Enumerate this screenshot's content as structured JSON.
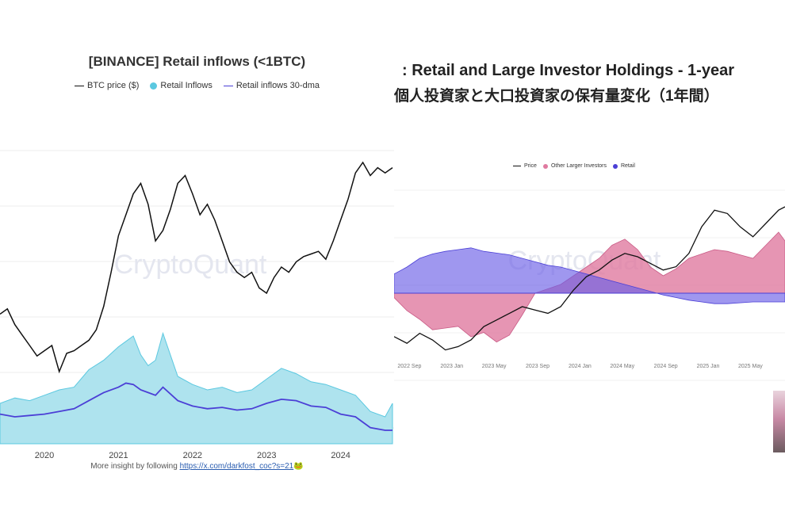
{
  "left": {
    "title": "[BINANCE] Retail inflows (<1BTC)",
    "legend": [
      {
        "label": "BTC price ($)",
        "kind": "line",
        "color": "#111111"
      },
      {
        "label": "Retail Inflows",
        "kind": "dot",
        "color": "#5bc8e0"
      },
      {
        "label": "Retail inflows 30-dma",
        "kind": "line",
        "color": "#4b3fd6"
      }
    ],
    "watermark": "CryptoQuant",
    "footer_text": "More insight by following ",
    "footer_link": "https://x.com/darkfost_coc?s=21",
    "footer_emoji": "🐸"
  },
  "right": {
    "title": ": Retail and Large Investor Holdings - 1-year",
    "subtitle": "個人投資家と大口投資家の保有量変化（1年間）",
    "legend": [
      {
        "label": "Price",
        "kind": "line",
        "color": "#111111"
      },
      {
        "label": "Other Larger Investors",
        "kind": "dot",
        "color": "#e07aa0"
      },
      {
        "label": "Retail",
        "kind": "dot",
        "color": "#4b3fd6"
      }
    ],
    "watermark": "CryptoQuant"
  },
  "chart_data": [
    {
      "type": "line",
      "title": "[BINANCE] Retail inflows (<1BTC)",
      "x_ticks": [
        "2020",
        "2021",
        "2022",
        "2023",
        "2024"
      ],
      "xlim": [
        2019.4,
        2024.7
      ],
      "series": [
        {
          "name": "BTC price ($)",
          "x": [
            2019.4,
            2019.5,
            2019.6,
            2019.7,
            2019.8,
            2019.9,
            2020.0,
            2020.1,
            2020.2,
            2020.3,
            2020.4,
            2020.5,
            2020.6,
            2020.7,
            2020.8,
            2020.9,
            2021.0,
            2021.1,
            2021.2,
            2021.3,
            2021.4,
            2021.5,
            2021.6,
            2021.7,
            2021.8,
            2021.9,
            2022.0,
            2022.1,
            2022.2,
            2022.3,
            2022.4,
            2022.5,
            2022.6,
            2022.7,
            2022.8,
            2022.9,
            2023.0,
            2023.1,
            2023.2,
            2023.3,
            2023.4,
            2023.5,
            2023.6,
            2023.7,
            2023.8,
            2023.9,
            2024.0,
            2024.1,
            2024.2,
            2024.3,
            2024.4,
            2024.5,
            2024.6,
            2024.7
          ],
          "values": [
            0.42,
            0.44,
            0.38,
            0.34,
            0.3,
            0.26,
            0.28,
            0.3,
            0.2,
            0.27,
            0.28,
            0.3,
            0.32,
            0.36,
            0.45,
            0.58,
            0.72,
            0.8,
            0.88,
            0.92,
            0.84,
            0.7,
            0.74,
            0.82,
            0.92,
            0.95,
            0.88,
            0.8,
            0.84,
            0.78,
            0.7,
            0.62,
            0.58,
            0.56,
            0.58,
            0.52,
            0.5,
            0.56,
            0.6,
            0.58,
            0.62,
            0.64,
            0.65,
            0.66,
            0.63,
            0.7,
            0.78,
            0.86,
            0.96,
            1.0,
            0.95,
            0.98,
            0.96,
            0.98
          ]
        },
        {
          "name": "Retail inflows 30-dma",
          "x": [
            2019.4,
            2019.6,
            2019.8,
            2020.0,
            2020.2,
            2020.4,
            2020.6,
            2020.8,
            2021.0,
            2021.1,
            2021.2,
            2021.3,
            2021.4,
            2021.5,
            2021.6,
            2021.8,
            2022.0,
            2022.2,
            2022.4,
            2022.6,
            2022.8,
            2023.0,
            2023.2,
            2023.4,
            2023.6,
            2023.8,
            2024.0,
            2024.2,
            2024.4,
            2024.6,
            2024.7
          ],
          "values": [
            0.22,
            0.2,
            0.21,
            0.22,
            0.24,
            0.26,
            0.32,
            0.38,
            0.42,
            0.45,
            0.44,
            0.4,
            0.38,
            0.36,
            0.42,
            0.32,
            0.28,
            0.26,
            0.27,
            0.25,
            0.26,
            0.3,
            0.33,
            0.32,
            0.28,
            0.27,
            0.22,
            0.2,
            0.12,
            0.1,
            0.1
          ]
        },
        {
          "name": "Retail Inflows",
          "x": [
            2019.4,
            2019.6,
            2019.8,
            2020.0,
            2020.2,
            2020.4,
            2020.6,
            2020.8,
            2021.0,
            2021.1,
            2021.2,
            2021.3,
            2021.4,
            2021.5,
            2021.6,
            2021.8,
            2022.0,
            2022.2,
            2022.4,
            2022.6,
            2022.8,
            2023.0,
            2023.2,
            2023.4,
            2023.6,
            2023.8,
            2024.0,
            2024.2,
            2024.4,
            2024.6,
            2024.7
          ],
          "values": [
            0.3,
            0.34,
            0.32,
            0.36,
            0.4,
            0.42,
            0.55,
            0.62,
            0.72,
            0.76,
            0.8,
            0.66,
            0.58,
            0.62,
            0.82,
            0.5,
            0.44,
            0.4,
            0.42,
            0.38,
            0.4,
            0.48,
            0.56,
            0.52,
            0.46,
            0.44,
            0.4,
            0.36,
            0.24,
            0.2,
            0.3
          ]
        }
      ]
    },
    {
      "type": "area",
      "title": ": Retail and Large Investor Holdings - 1-year",
      "x_ticks": [
        "2022 Sep",
        "2023 Jan",
        "2023 May",
        "2023 Sep",
        "2024 Jan",
        "2024 May",
        "2024 Sep",
        "2025 Jan",
        "2025 May"
      ],
      "xlim": [
        2022.55,
        2025.6
      ],
      "series": [
        {
          "name": "Price",
          "x": [
            2022.55,
            2022.65,
            2022.75,
            2022.85,
            2022.95,
            2023.05,
            2023.15,
            2023.25,
            2023.35,
            2023.45,
            2023.55,
            2023.65,
            2023.75,
            2023.85,
            2023.95,
            2024.05,
            2024.15,
            2024.25,
            2024.35,
            2024.45,
            2024.55,
            2024.65,
            2024.75,
            2024.85,
            2024.95,
            2025.05,
            2025.15,
            2025.25,
            2025.35,
            2025.45,
            2025.55,
            2025.6
          ],
          "values": [
            0.12,
            0.08,
            0.14,
            0.1,
            0.04,
            0.06,
            0.1,
            0.18,
            0.22,
            0.26,
            0.3,
            0.28,
            0.26,
            0.3,
            0.4,
            0.48,
            0.52,
            0.58,
            0.62,
            0.6,
            0.56,
            0.52,
            0.54,
            0.62,
            0.78,
            0.88,
            0.86,
            0.78,
            0.72,
            0.8,
            0.88,
            0.9
          ]
        },
        {
          "name": "Other Larger Investors",
          "x": [
            2022.55,
            2022.65,
            2022.75,
            2022.85,
            2022.95,
            2023.05,
            2023.15,
            2023.25,
            2023.35,
            2023.45,
            2023.55,
            2023.65,
            2023.75,
            2023.85,
            2023.95,
            2024.05,
            2024.15,
            2024.25,
            2024.35,
            2024.45,
            2024.55,
            2024.65,
            2024.75,
            2024.85,
            2024.95,
            2025.05,
            2025.15,
            2025.25,
            2025.35,
            2025.45,
            2025.55,
            2025.6
          ],
          "values": [
            -0.05,
            -0.2,
            -0.3,
            -0.42,
            -0.4,
            -0.38,
            -0.5,
            -0.45,
            -0.56,
            -0.48,
            -0.25,
            0.0,
            0.05,
            0.1,
            0.2,
            0.3,
            0.4,
            0.55,
            0.62,
            0.5,
            0.3,
            0.2,
            0.28,
            0.4,
            0.45,
            0.5,
            0.48,
            0.44,
            0.4,
            0.55,
            0.7,
            0.6
          ]
        },
        {
          "name": "Retail",
          "x": [
            2022.55,
            2022.65,
            2022.75,
            2022.85,
            2022.95,
            2023.05,
            2023.15,
            2023.25,
            2023.35,
            2023.45,
            2023.55,
            2023.65,
            2023.75,
            2023.85,
            2023.95,
            2024.05,
            2024.15,
            2024.25,
            2024.35,
            2024.45,
            2024.55,
            2024.65,
            2024.75,
            2024.85,
            2024.95,
            2025.05,
            2025.15,
            2025.25,
            2025.35,
            2025.45,
            2025.55,
            2025.6
          ],
          "values": [
            0.22,
            0.3,
            0.4,
            0.45,
            0.48,
            0.5,
            0.52,
            0.48,
            0.46,
            0.44,
            0.4,
            0.36,
            0.32,
            0.3,
            0.26,
            0.22,
            0.18,
            0.14,
            0.1,
            0.06,
            0.02,
            -0.02,
            -0.05,
            -0.08,
            -0.1,
            -0.12,
            -0.12,
            -0.11,
            -0.1,
            -0.1,
            -0.1,
            -0.1
          ]
        }
      ]
    }
  ]
}
